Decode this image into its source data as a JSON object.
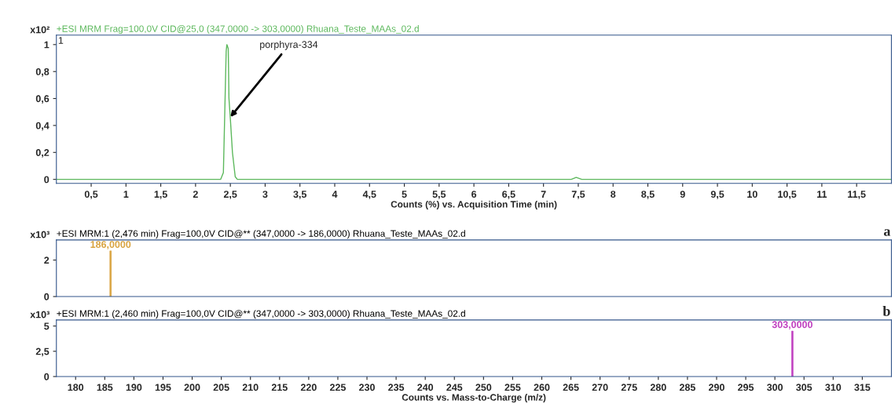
{
  "chart_data": [
    {
      "type": "line",
      "title": "+ESI MRM Frag=100,0V CID@25,0 (347,0000 -> 303,0000) Rhuana_Teste_MAAs_02.d",
      "xlabel": "Counts (%) vs. Acquisition Time (min)",
      "ylabel": "x10²",
      "annotations": [
        "1",
        {
          "text": "porphyra-334",
          "x": 2.48,
          "y": 0.45
        }
      ],
      "series": [
        {
          "color": "#5cb85c",
          "x": [
            0,
            2.36,
            2.4,
            2.42,
            2.44,
            2.45,
            2.47,
            2.48,
            2.5,
            2.53,
            2.57,
            2.6,
            7.4,
            7.47,
            7.55,
            12
          ],
          "values": [
            0,
            0,
            0.05,
            0.5,
            0.95,
            1.0,
            0.97,
            0.6,
            0.45,
            0.2,
            0.02,
            0,
            0,
            0.015,
            0,
            0
          ]
        }
      ],
      "xlim": [
        0,
        12
      ],
      "ylim": [
        -0.03,
        1.07
      ],
      "xticks": [
        {
          "value": 0.5,
          "label": "0,5"
        },
        1,
        {
          "value": 1.5,
          "label": "1,5"
        },
        2,
        {
          "value": 2.5,
          "label": "2,5"
        },
        3,
        {
          "value": 3.5,
          "label": "3,5"
        },
        4,
        {
          "value": 4.5,
          "label": "4,5"
        },
        5,
        {
          "value": 5.5,
          "label": "5,5"
        },
        6,
        {
          "value": 6.5,
          "label": "6,5"
        },
        7,
        {
          "value": 7.5,
          "label": "7,5"
        },
        8,
        {
          "value": 8.5,
          "label": "8,5"
        },
        9,
        {
          "value": 9.5,
          "label": "9,5"
        },
        10,
        {
          "value": 10.5,
          "label": "10,5"
        },
        11,
        {
          "value": 11.5,
          "label": "11,5"
        }
      ],
      "yticks": [
        0,
        {
          "value": 0.2,
          "label": "0,2"
        },
        {
          "value": 0.4,
          "label": "0,4"
        },
        {
          "value": 0.6,
          "label": "0,6"
        },
        {
          "value": 0.8,
          "label": "0,8"
        },
        1
      ],
      "marker": "none",
      "line_style": "solid",
      "grid": false,
      "legend": false
    },
    {
      "type": "bar",
      "title": "+ESI MRM:1 (2,476 min) Frag=100,0V CID@** (347,0000 -> 186,0000) Rhuana_Teste_MAAs_02.d",
      "ylabel": "x10³",
      "annotations": [
        "a"
      ],
      "series": [
        {
          "color": "#d9a441",
          "x": [
            186
          ],
          "values": [
            2.5
          ],
          "value_labels": [
            "186,0000"
          ]
        }
      ],
      "xlim": [
        176.7,
        320
      ],
      "ylim": [
        0,
        3.1
      ],
      "yticks": [
        0,
        2
      ],
      "tick_labels": "y",
      "grid": false,
      "legend": false
    },
    {
      "type": "bar",
      "title": "+ESI MRM:1 (2,460 min) Frag=100,0V CID@** (347,0000 -> 303,0000) Rhuana_Teste_MAAs_02.d",
      "xlabel": "Counts vs. Mass-to-Charge (m/z)",
      "ylabel": "x10³",
      "annotations": [
        "b"
      ],
      "series": [
        {
          "color": "#c040c0",
          "x": [
            303
          ],
          "values": [
            4.5
          ],
          "value_labels": [
            "303,0000"
          ]
        }
      ],
      "xlim": [
        176.7,
        320
      ],
      "ylim": [
        0,
        5.6
      ],
      "xticks": [
        180,
        185,
        190,
        195,
        200,
        205,
        210,
        215,
        220,
        225,
        230,
        235,
        240,
        245,
        250,
        255,
        260,
        265,
        270,
        275,
        280,
        285,
        290,
        295,
        300,
        305,
        310,
        315
      ],
      "yticks": [
        0,
        {
          "value": 2.5,
          "label": "2,5"
        },
        5
      ],
      "grid": false,
      "legend": false
    }
  ]
}
